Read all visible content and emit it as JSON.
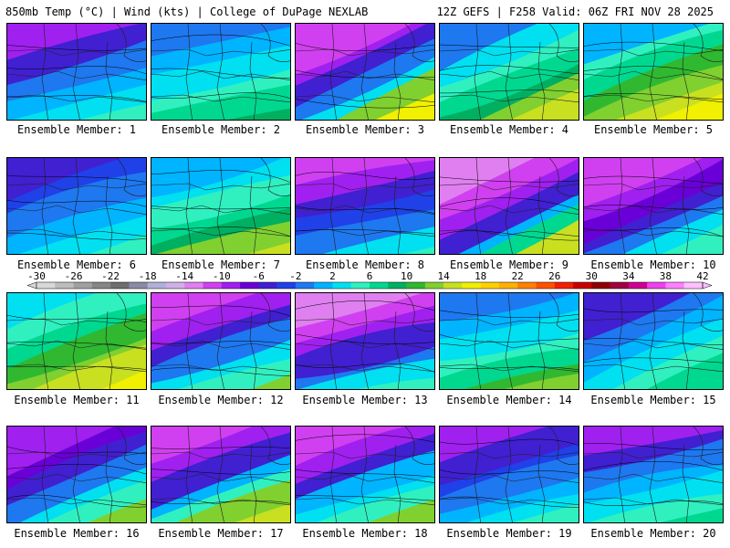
{
  "header": {
    "left": "850mb Temp (°C) | Wind (kts) | College of DuPage NEXLAB",
    "right": "12Z GEFS | F258 Valid: 06Z FRI NOV 28 2025"
  },
  "colorbar": {
    "ticks": [
      "-30",
      "-26",
      "-22",
      "-18",
      "-14",
      "-10",
      "-6",
      "-2",
      "2",
      "6",
      "10",
      "14",
      "18",
      "22",
      "26",
      "30",
      "34",
      "38",
      "42"
    ],
    "colors": [
      "#d8d8d8",
      "#bcbcbc",
      "#a0a0a0",
      "#868686",
      "#6e6e6e",
      "#8a8aa8",
      "#b0b0d8",
      "#d0b0e8",
      "#e080f0",
      "#d040f0",
      "#a020f0",
      "#6a00d8",
      "#4020d0",
      "#2040e8",
      "#1e78f0",
      "#00b4ff",
      "#00e0f0",
      "#30f0c0",
      "#00d890",
      "#00b060",
      "#30b830",
      "#80d030",
      "#c8e020",
      "#f0f000",
      "#ffd000",
      "#ffb000",
      "#ff8000",
      "#ff5000",
      "#f02000",
      "#c80000",
      "#900000",
      "#a00040",
      "#d00090",
      "#f040f0",
      "#ff80ff",
      "#ffc0ff"
    ]
  },
  "members": [
    {
      "label": "Ensemble Member: 1",
      "palette": [
        "#a020f0",
        "#4020d0",
        "#1e78f0",
        "#00b4ff",
        "#00e0f0",
        "#30f0c0"
      ]
    },
    {
      "label": "Ensemble Member: 2",
      "palette": [
        "#1e78f0",
        "#00b4ff",
        "#00e0f0",
        "#30f0c0",
        "#00d890",
        "#00b060"
      ]
    },
    {
      "label": "Ensemble Member: 3",
      "palette": [
        "#d040f0",
        "#a020f0",
        "#4020d0",
        "#1e78f0",
        "#00e0f0",
        "#80d030",
        "#f0f000"
      ]
    },
    {
      "label": "Ensemble Member: 4",
      "palette": [
        "#1e78f0",
        "#00e0f0",
        "#30f0c0",
        "#00d890",
        "#00b060",
        "#80d030",
        "#c8e020"
      ]
    },
    {
      "label": "Ensemble Member: 5",
      "palette": [
        "#00b4ff",
        "#30f0c0",
        "#00d890",
        "#30b830",
        "#80d030",
        "#c8e020",
        "#f0f000"
      ]
    },
    {
      "label": "Ensemble Member: 6",
      "palette": [
        "#4020d0",
        "#2040e8",
        "#1e78f0",
        "#00b4ff",
        "#00e0f0",
        "#30f0c0"
      ]
    },
    {
      "label": "Ensemble Member: 7",
      "palette": [
        "#00b4ff",
        "#00e0f0",
        "#30f0c0",
        "#00d890",
        "#00b060",
        "#80d030",
        "#c8e020"
      ]
    },
    {
      "label": "Ensemble Member: 8",
      "palette": [
        "#d040f0",
        "#a020f0",
        "#4020d0",
        "#2040e8",
        "#1e78f0",
        "#00e0f0",
        "#30f0c0"
      ]
    },
    {
      "label": "Ensemble Member: 9",
      "palette": [
        "#e080f0",
        "#d040f0",
        "#a020f0",
        "#4020d0",
        "#00b4ff",
        "#00d890",
        "#c8e020"
      ]
    },
    {
      "label": "Ensemble Member: 10",
      "palette": [
        "#d040f0",
        "#a020f0",
        "#6a00d8",
        "#4020d0",
        "#1e78f0",
        "#00e0f0",
        "#30f0c0"
      ]
    },
    {
      "label": "Ensemble Member: 11",
      "palette": [
        "#00e0f0",
        "#30f0c0",
        "#00d890",
        "#30b830",
        "#80d030",
        "#c8e020",
        "#f0f000"
      ]
    },
    {
      "label": "Ensemble Member: 12",
      "palette": [
        "#d040f0",
        "#a020f0",
        "#4020d0",
        "#1e78f0",
        "#00e0f0",
        "#30f0c0",
        "#80d030"
      ]
    },
    {
      "label": "Ensemble Member: 13",
      "palette": [
        "#e080f0",
        "#d040f0",
        "#a020f0",
        "#4020d0",
        "#1e78f0",
        "#00e0f0",
        "#30f0c0"
      ]
    },
    {
      "label": "Ensemble Member: 14",
      "palette": [
        "#1e78f0",
        "#00b4ff",
        "#00e0f0",
        "#30f0c0",
        "#00d890",
        "#30b830",
        "#80d030"
      ]
    },
    {
      "label": "Ensemble Member: 15",
      "palette": [
        "#4020d0",
        "#1e78f0",
        "#00b4ff",
        "#00e0f0",
        "#30f0c0",
        "#00d890"
      ]
    },
    {
      "label": "Ensemble Member: 16",
      "palette": [
        "#a020f0",
        "#6a00d8",
        "#4020d0",
        "#1e78f0",
        "#00e0f0",
        "#30f0c0",
        "#80d030"
      ]
    },
    {
      "label": "Ensemble Member: 17",
      "palette": [
        "#d040f0",
        "#a020f0",
        "#4020d0",
        "#00b4ff",
        "#30f0c0",
        "#80d030",
        "#c8e020"
      ]
    },
    {
      "label": "Ensemble Member: 18",
      "palette": [
        "#d040f0",
        "#a020f0",
        "#4020d0",
        "#00b4ff",
        "#00e0f0",
        "#30f0c0",
        "#80d030"
      ]
    },
    {
      "label": "Ensemble Member: 19",
      "palette": [
        "#a020f0",
        "#4020d0",
        "#2040e8",
        "#1e78f0",
        "#00b4ff",
        "#00e0f0",
        "#30f0c0"
      ]
    },
    {
      "label": "Ensemble Member: 20",
      "palette": [
        "#a020f0",
        "#4020d0",
        "#1e78f0",
        "#00b4ff",
        "#00e0f0",
        "#30f0c0",
        "#00d890"
      ]
    }
  ]
}
